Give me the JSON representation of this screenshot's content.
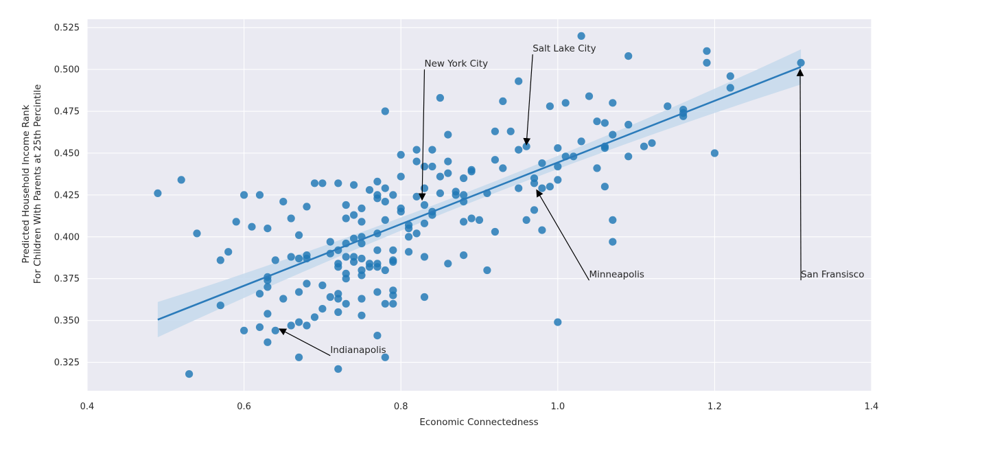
{
  "chart_data": {
    "type": "scatter",
    "title": "",
    "xlabel": "Economic Connectedness",
    "ylabel_lines": [
      "Predicted Household Income Rank",
      "For Children With Parents at 25th Percintile"
    ],
    "xlim": [
      0.4,
      1.4
    ],
    "ylim": [
      0.308,
      0.53
    ],
    "x_ticks": [
      0.4,
      0.6,
      0.8,
      1.0,
      1.2,
      1.4
    ],
    "x_tick_labels": [
      "0.4",
      "0.6",
      "0.8",
      "1.0",
      "1.2",
      "1.4"
    ],
    "y_ticks": [
      0.325,
      0.35,
      0.375,
      0.4,
      0.425,
      0.45,
      0.475,
      0.5,
      0.525
    ],
    "y_tick_labels": [
      "0.325",
      "0.350",
      "0.375",
      "0.400",
      "0.425",
      "0.450",
      "0.475",
      "0.500",
      "0.525"
    ],
    "grid": true,
    "colors": {
      "background": "#eaeaf2",
      "grid": "#ffffff",
      "points": "#1f77b4",
      "regression_line": "#2b7bba",
      "confidence_band": "#c6d9ec",
      "annotation": "#000000"
    },
    "points": [
      [
        0.49,
        0.426
      ],
      [
        0.52,
        0.434
      ],
      [
        0.53,
        0.318
      ],
      [
        0.54,
        0.402
      ],
      [
        0.57,
        0.386
      ],
      [
        0.57,
        0.359
      ],
      [
        0.58,
        0.391
      ],
      [
        0.59,
        0.409
      ],
      [
        0.6,
        0.425
      ],
      [
        0.6,
        0.344
      ],
      [
        0.61,
        0.406
      ],
      [
        0.62,
        0.425
      ],
      [
        0.62,
        0.366
      ],
      [
        0.62,
        0.346
      ],
      [
        0.63,
        0.405
      ],
      [
        0.63,
        0.376
      ],
      [
        0.63,
        0.374
      ],
      [
        0.63,
        0.37
      ],
      [
        0.63,
        0.354
      ],
      [
        0.63,
        0.337
      ],
      [
        0.64,
        0.386
      ],
      [
        0.64,
        0.344
      ],
      [
        0.65,
        0.421
      ],
      [
        0.65,
        0.363
      ],
      [
        0.66,
        0.411
      ],
      [
        0.66,
        0.388
      ],
      [
        0.66,
        0.347
      ],
      [
        0.67,
        0.401
      ],
      [
        0.67,
        0.387
      ],
      [
        0.67,
        0.367
      ],
      [
        0.67,
        0.349
      ],
      [
        0.67,
        0.328
      ],
      [
        0.68,
        0.418
      ],
      [
        0.68,
        0.389
      ],
      [
        0.68,
        0.387
      ],
      [
        0.68,
        0.372
      ],
      [
        0.68,
        0.347
      ],
      [
        0.69,
        0.432
      ],
      [
        0.69,
        0.352
      ],
      [
        0.7,
        0.432
      ],
      [
        0.7,
        0.371
      ],
      [
        0.7,
        0.357
      ],
      [
        0.71,
        0.397
      ],
      [
        0.71,
        0.39
      ],
      [
        0.71,
        0.364
      ],
      [
        0.72,
        0.432
      ],
      [
        0.72,
        0.392
      ],
      [
        0.72,
        0.384
      ],
      [
        0.72,
        0.382
      ],
      [
        0.72,
        0.366
      ],
      [
        0.72,
        0.363
      ],
      [
        0.72,
        0.355
      ],
      [
        0.72,
        0.321
      ],
      [
        0.73,
        0.419
      ],
      [
        0.73,
        0.411
      ],
      [
        0.73,
        0.396
      ],
      [
        0.73,
        0.388
      ],
      [
        0.73,
        0.378
      ],
      [
        0.73,
        0.375
      ],
      [
        0.73,
        0.36
      ],
      [
        0.74,
        0.431
      ],
      [
        0.74,
        0.413
      ],
      [
        0.74,
        0.399
      ],
      [
        0.74,
        0.388
      ],
      [
        0.74,
        0.385
      ],
      [
        0.75,
        0.417
      ],
      [
        0.75,
        0.409
      ],
      [
        0.75,
        0.4
      ],
      [
        0.75,
        0.396
      ],
      [
        0.75,
        0.387
      ],
      [
        0.75,
        0.38
      ],
      [
        0.75,
        0.377
      ],
      [
        0.75,
        0.363
      ],
      [
        0.75,
        0.353
      ],
      [
        0.76,
        0.428
      ],
      [
        0.76,
        0.384
      ],
      [
        0.76,
        0.382
      ],
      [
        0.77,
        0.433
      ],
      [
        0.77,
        0.425
      ],
      [
        0.77,
        0.423
      ],
      [
        0.77,
        0.402
      ],
      [
        0.77,
        0.392
      ],
      [
        0.77,
        0.384
      ],
      [
        0.77,
        0.382
      ],
      [
        0.77,
        0.367
      ],
      [
        0.77,
        0.341
      ],
      [
        0.78,
        0.475
      ],
      [
        0.78,
        0.429
      ],
      [
        0.78,
        0.421
      ],
      [
        0.78,
        0.41
      ],
      [
        0.78,
        0.38
      ],
      [
        0.78,
        0.36
      ],
      [
        0.78,
        0.328
      ],
      [
        0.79,
        0.425
      ],
      [
        0.79,
        0.392
      ],
      [
        0.79,
        0.386
      ],
      [
        0.79,
        0.385
      ],
      [
        0.79,
        0.368
      ],
      [
        0.79,
        0.365
      ],
      [
        0.79,
        0.36
      ],
      [
        0.8,
        0.449
      ],
      [
        0.8,
        0.436
      ],
      [
        0.8,
        0.417
      ],
      [
        0.8,
        0.415
      ],
      [
        0.81,
        0.407
      ],
      [
        0.81,
        0.405
      ],
      [
        0.81,
        0.4
      ],
      [
        0.81,
        0.391
      ],
      [
        0.82,
        0.452
      ],
      [
        0.82,
        0.445
      ],
      [
        0.82,
        0.424
      ],
      [
        0.82,
        0.402
      ],
      [
        0.83,
        0.442
      ],
      [
        0.83,
        0.429
      ],
      [
        0.83,
        0.419
      ],
      [
        0.83,
        0.408
      ],
      [
        0.83,
        0.388
      ],
      [
        0.83,
        0.364
      ],
      [
        0.84,
        0.452
      ],
      [
        0.84,
        0.442
      ],
      [
        0.84,
        0.415
      ],
      [
        0.84,
        0.413
      ],
      [
        0.85,
        0.483
      ],
      [
        0.85,
        0.436
      ],
      [
        0.85,
        0.426
      ],
      [
        0.86,
        0.461
      ],
      [
        0.86,
        0.445
      ],
      [
        0.86,
        0.438
      ],
      [
        0.86,
        0.384
      ],
      [
        0.87,
        0.427
      ],
      [
        0.87,
        0.425
      ],
      [
        0.88,
        0.435
      ],
      [
        0.88,
        0.425
      ],
      [
        0.88,
        0.421
      ],
      [
        0.88,
        0.409
      ],
      [
        0.88,
        0.389
      ],
      [
        0.89,
        0.44
      ],
      [
        0.89,
        0.439
      ],
      [
        0.89,
        0.411
      ],
      [
        0.9,
        0.41
      ],
      [
        0.91,
        0.426
      ],
      [
        0.91,
        0.38
      ],
      [
        0.92,
        0.463
      ],
      [
        0.92,
        0.446
      ],
      [
        0.92,
        0.403
      ],
      [
        0.93,
        0.481
      ],
      [
        0.93,
        0.441
      ],
      [
        0.94,
        0.463
      ],
      [
        0.95,
        0.493
      ],
      [
        0.95,
        0.452
      ],
      [
        0.95,
        0.429
      ],
      [
        0.96,
        0.454
      ],
      [
        0.96,
        0.41
      ],
      [
        0.97,
        0.435
      ],
      [
        0.97,
        0.432
      ],
      [
        0.97,
        0.416
      ],
      [
        0.98,
        0.444
      ],
      [
        0.98,
        0.429
      ],
      [
        0.98,
        0.404
      ],
      [
        0.99,
        0.478
      ],
      [
        0.99,
        0.43
      ],
      [
        1.0,
        0.453
      ],
      [
        1.0,
        0.442
      ],
      [
        1.0,
        0.434
      ],
      [
        1.0,
        0.349
      ],
      [
        1.01,
        0.48
      ],
      [
        1.01,
        0.448
      ],
      [
        1.02,
        0.448
      ],
      [
        1.03,
        0.52
      ],
      [
        1.03,
        0.457
      ],
      [
        1.04,
        0.484
      ],
      [
        1.05,
        0.469
      ],
      [
        1.05,
        0.441
      ],
      [
        1.06,
        0.468
      ],
      [
        1.06,
        0.454
      ],
      [
        1.06,
        0.453
      ],
      [
        1.06,
        0.43
      ],
      [
        1.07,
        0.48
      ],
      [
        1.07,
        0.461
      ],
      [
        1.07,
        0.41
      ],
      [
        1.07,
        0.397
      ],
      [
        1.09,
        0.508
      ],
      [
        1.09,
        0.467
      ],
      [
        1.09,
        0.448
      ],
      [
        1.11,
        0.454
      ],
      [
        1.12,
        0.456
      ],
      [
        1.14,
        0.478
      ],
      [
        1.16,
        0.476
      ],
      [
        1.16,
        0.474
      ],
      [
        1.16,
        0.472
      ],
      [
        1.19,
        0.511
      ],
      [
        1.19,
        0.504
      ],
      [
        1.2,
        0.45
      ],
      [
        1.22,
        0.496
      ],
      [
        1.22,
        0.489
      ],
      [
        1.31,
        0.504
      ]
    ],
    "regression": {
      "x_range": [
        0.49,
        1.31
      ],
      "y_start": 0.3505,
      "y_end": 0.5015,
      "ci_halfwidth_ends": 0.0105,
      "ci_halfwidth_center": 0.0035
    },
    "annotations": [
      {
        "label": "New York City",
        "text_x": 0.83,
        "text_y": 0.5,
        "point_x": 0.827,
        "point_y": 0.422
      },
      {
        "label": "Salt Lake City",
        "text_x": 0.968,
        "text_y": 0.509,
        "point_x": 0.96,
        "point_y": 0.455
      },
      {
        "label": "Minneapolis",
        "text_x": 1.04,
        "text_y": 0.374,
        "point_x": 0.973,
        "point_y": 0.428
      },
      {
        "label": "San Fransisco",
        "text_x": 1.31,
        "text_y": 0.374,
        "point_x": 1.309,
        "point_y": 0.5
      },
      {
        "label": "Indianapolis",
        "text_x": 0.71,
        "text_y": 0.329,
        "point_x": 0.645,
        "point_y": 0.345
      }
    ]
  }
}
